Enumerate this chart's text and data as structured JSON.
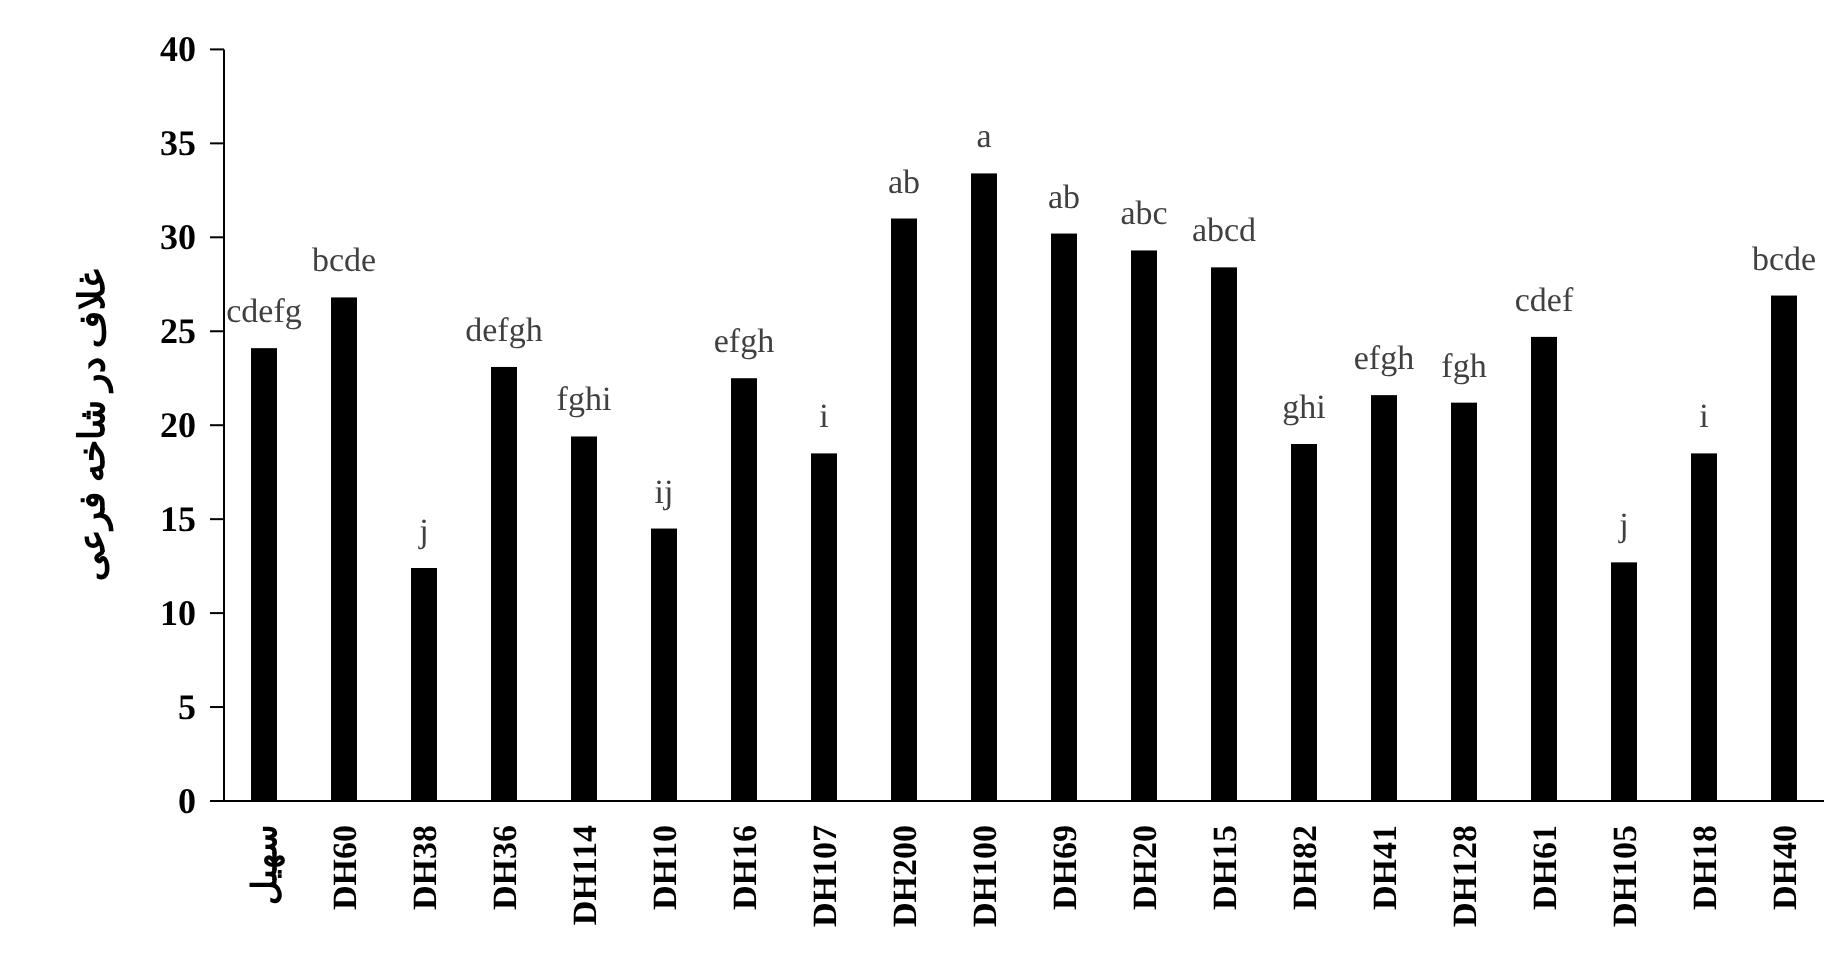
{
  "chart_data": {
    "type": "bar",
    "ylabel": "غلاف در شاخه فرعی",
    "categories": [
      "سهیل",
      "DH60",
      "DH38",
      "DH36",
      "DH114",
      "DH10",
      "DH16",
      "DH107",
      "DH200",
      "DH100",
      "DH69",
      "DH20",
      "DH15",
      "DH82",
      "DH41",
      "DH128",
      "DH61",
      "DH105",
      "DH18",
      "DH40"
    ],
    "values": [
      24.1,
      26.8,
      12.4,
      23.1,
      19.4,
      14.5,
      22.5,
      18.5,
      31.0,
      33.4,
      30.2,
      29.3,
      28.4,
      19.0,
      21.6,
      21.2,
      24.7,
      12.7,
      18.5,
      26.9
    ],
    "value_labels": [
      "cdefg",
      "bcde",
      "j",
      "defgh",
      "fghi",
      "ij",
      "efgh",
      "i",
      "ab",
      "a",
      "ab",
      "abc",
      "abcd",
      "ghi",
      "efgh",
      "fgh",
      "cdef",
      "j",
      "i",
      "bcde"
    ],
    "color": "#000000",
    "ylim": [
      0,
      40
    ],
    "yticks": [
      0,
      5,
      10,
      15,
      20,
      25,
      30,
      35,
      40
    ],
    "grid": false
  }
}
